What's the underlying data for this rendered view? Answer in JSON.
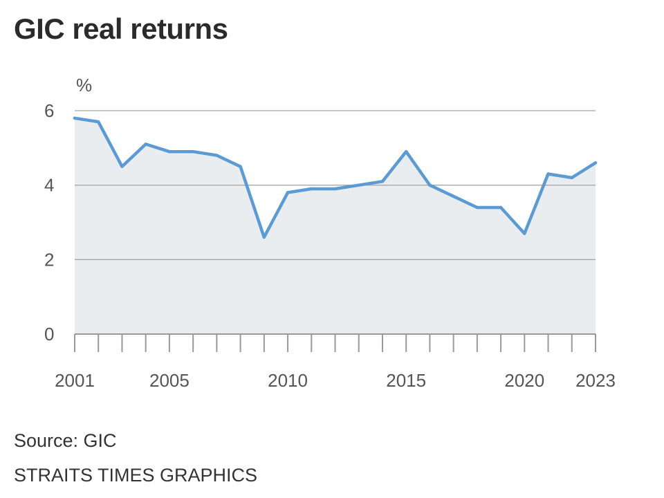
{
  "title": "GIC real returns",
  "footer": {
    "source": "Source: GIC",
    "credit": "STRAITS TIMES GRAPHICS"
  },
  "colors": {
    "line": "#5b9bd5",
    "area": "#e9edef",
    "grid": "#a6a6a6",
    "axis": "#999999"
  },
  "chart_data": {
    "type": "area",
    "unit_label": "%",
    "x": [
      2001,
      2002,
      2003,
      2004,
      2005,
      2006,
      2007,
      2008,
      2009,
      2010,
      2011,
      2012,
      2013,
      2014,
      2015,
      2016,
      2017,
      2018,
      2019,
      2020,
      2021,
      2022,
      2023
    ],
    "series": [
      {
        "values": [
          5.8,
          5.7,
          4.5,
          5.1,
          4.9,
          4.9,
          4.8,
          4.5,
          2.6,
          3.8,
          3.9,
          3.9,
          4.0,
          4.1,
          4.9,
          4.0,
          3.7,
          3.4,
          3.4,
          2.7,
          4.3,
          4.2,
          4.6
        ]
      }
    ],
    "xlim": [
      2001,
      2023
    ],
    "ylim": [
      0,
      6
    ],
    "yticks": [
      "0",
      "2",
      "4",
      "6"
    ],
    "xtick_labels": [
      "2001",
      "2005",
      "2010",
      "2015",
      "2020",
      "2023"
    ],
    "grid": true,
    "legend": "none"
  }
}
